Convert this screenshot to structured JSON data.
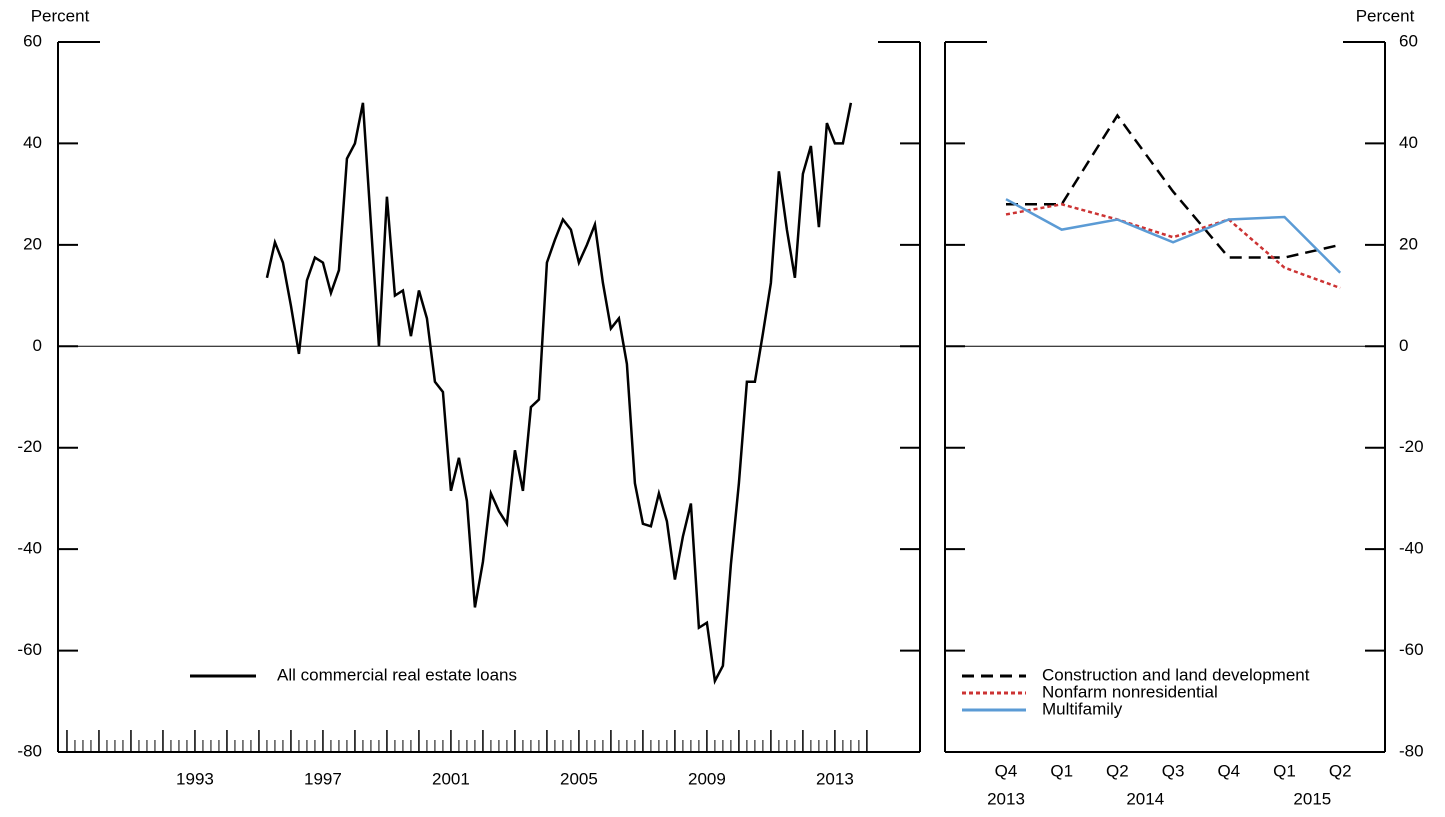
{
  "chart_data": [
    {
      "type": "line",
      "y_label": "Percent",
      "x": [
        1995.25,
        1995.5,
        1995.75,
        1996,
        1996.25,
        1996.5,
        1996.75,
        1997,
        1997.25,
        1997.5,
        1997.75,
        1998,
        1998.25,
        1998.5,
        1998.75,
        1999,
        1999.25,
        1999.5,
        1999.75,
        2000,
        2000.25,
        2000.5,
        2000.75,
        2001,
        2001.25,
        2001.5,
        2001.75,
        2002,
        2002.25,
        2002.5,
        2002.75,
        2003,
        2003.25,
        2003.5,
        2003.75,
        2004,
        2004.25,
        2004.5,
        2004.75,
        2005,
        2005.25,
        2005.5,
        2005.75,
        2006,
        2006.25,
        2006.5,
        2006.75,
        2007,
        2007.25,
        2007.5,
        2007.75,
        2008,
        2008.25,
        2008.5,
        2008.75,
        2009,
        2009.25,
        2009.5,
        2009.75,
        2010,
        2010.25,
        2010.5,
        2010.75,
        2011,
        2011.25,
        2011.5,
        2011.75,
        2012,
        2012.25,
        2012.5,
        2012.75,
        2013,
        2013.25,
        2013.5
      ],
      "series": [
        {
          "name": "All commercial real estate loans",
          "color": "#000000",
          "style": "solid",
          "values": [
            13.5,
            20.5,
            16.5,
            8,
            -1.5,
            13,
            17.5,
            16.5,
            10.5,
            15,
            37,
            40,
            48,
            24,
            0,
            29.5,
            10,
            11,
            2,
            11,
            5.5,
            -7,
            -9,
            -28.5,
            -22,
            -30.5,
            -51.5,
            -42.5,
            -29,
            -32.5,
            -35,
            -20.5,
            -28.5,
            -12,
            -10.5,
            16.5,
            21,
            25,
            23,
            16.5,
            20,
            24,
            12.5,
            3.5,
            5.5,
            -3.5,
            -27,
            -35,
            -35.5,
            -29,
            -34.5,
            -46,
            -37.5,
            -31,
            -55.5,
            -54.5,
            -66,
            -63,
            -43,
            -27,
            -7,
            -7,
            2.5,
            12.5,
            34.5,
            23,
            13.5,
            34,
            39.5,
            23.5,
            44,
            40,
            40,
            48
          ]
        }
      ],
      "xlim": [
        1988.72,
        2015.66
      ],
      "xticks": [
        1993,
        1997,
        2001,
        2005,
        2009,
        2013
      ],
      "ylim": [
        -80,
        60
      ],
      "yticks": [
        -80,
        -60,
        -40,
        -20,
        0,
        20,
        40,
        60
      ]
    },
    {
      "type": "line",
      "y_label": "Percent",
      "categories": [
        "Q4",
        "Q1",
        "Q2",
        "Q3",
        "Q4",
        "Q1",
        "Q2"
      ],
      "year_groups": [
        {
          "label": "2013",
          "count": 1
        },
        {
          "label": "2014",
          "count": 4
        },
        {
          "label": "2015",
          "count": 2
        }
      ],
      "series": [
        {
          "name": "Construction and land development",
          "color": "#000000",
          "style": "dashed",
          "values": [
            28,
            28,
            45.5,
            30.5,
            17.5,
            17.5,
            20
          ]
        },
        {
          "name": "Nonfarm nonresidential",
          "color": "#cc3333",
          "style": "dotted",
          "values": [
            26,
            28,
            25,
            21.5,
            25,
            15.5,
            11.5
          ]
        },
        {
          "name": "Multifamily",
          "color": "#5b9bd5",
          "style": "solid",
          "values": [
            29,
            23,
            25,
            20.5,
            25,
            25.5,
            14.5
          ]
        }
      ],
      "ylim": [
        -80,
        60
      ],
      "yticks": [
        -80,
        -60,
        -40,
        -20,
        0,
        20,
        40,
        60
      ]
    }
  ]
}
